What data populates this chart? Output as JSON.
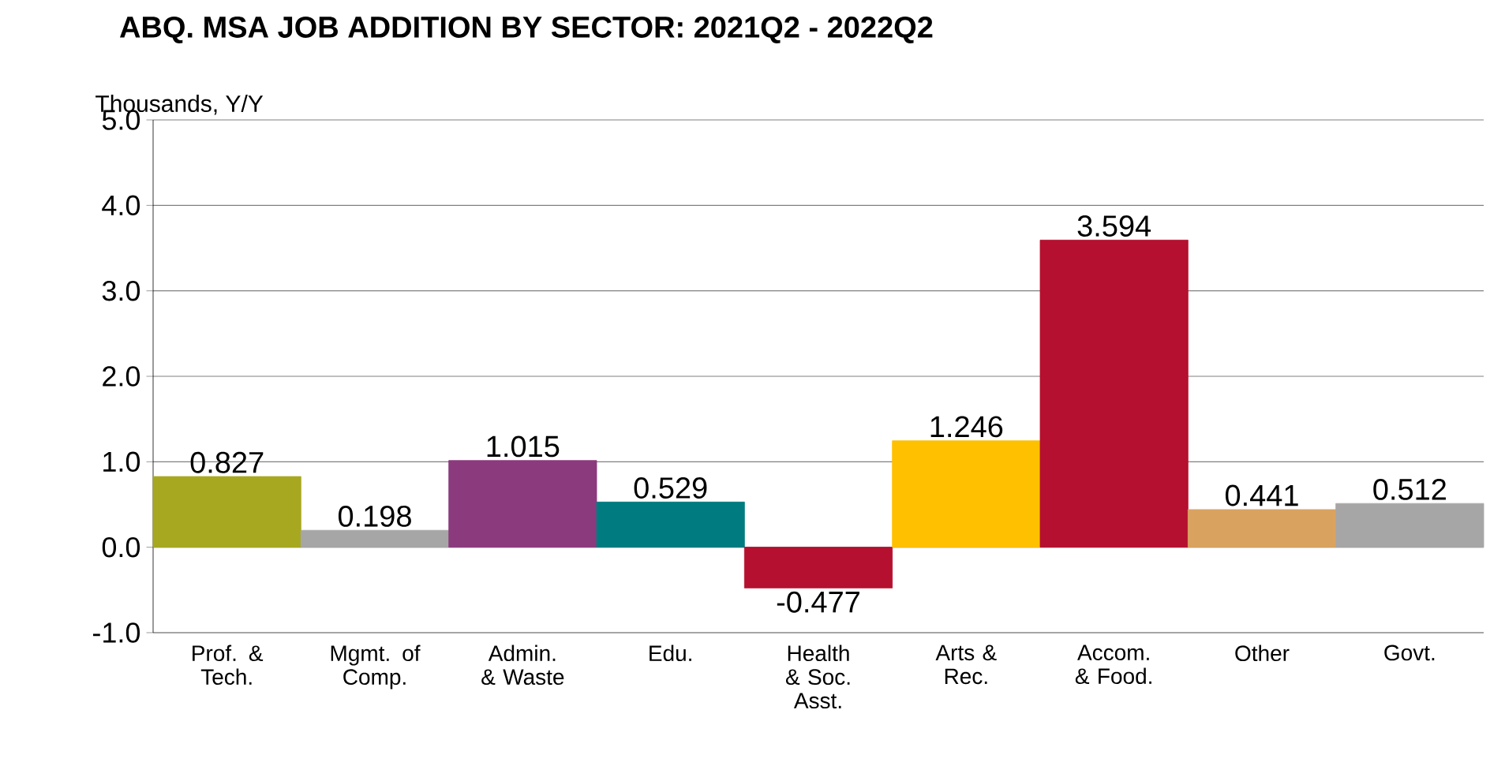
{
  "chart_data": {
    "type": "bar",
    "title": "ABQ. MSA JOB ADDITION BY SECTOR: 2021Q2 - 2022Q2",
    "ylabel": "Thousands, Y/Y",
    "categories": [
      "Prof. & Tech.",
      "Mgmt. of Comp.",
      "Admin. & Waste",
      "Edu.",
      "Health & Soc. Asst.",
      "Arts & Rec.",
      "Accom. & Food.",
      "Other",
      "Govt."
    ],
    "values": [
      0.827,
      0.198,
      1.015,
      0.529,
      -0.477,
      1.246,
      3.594,
      0.441,
      0.512
    ],
    "colors": [
      "#a8a820",
      "#a6a6a6",
      "#8b3a7e",
      "#007b80",
      "#b5102f",
      "#ffc000",
      "#b5102f",
      "#d9a35f",
      "#a6a6a6"
    ],
    "ylim": [
      -1,
      5
    ],
    "yticks": [
      {
        "value": -1,
        "label": "-1.0"
      },
      {
        "value": 0,
        "label": "0.0"
      },
      {
        "value": 1,
        "label": "1.0"
      },
      {
        "value": 2,
        "label": "2.0"
      },
      {
        "value": 3,
        "label": "3.0"
      },
      {
        "value": 4,
        "label": "4.0"
      },
      {
        "value": 5,
        "label": "5.0"
      }
    ],
    "grid": "y",
    "data_labels": true
  }
}
